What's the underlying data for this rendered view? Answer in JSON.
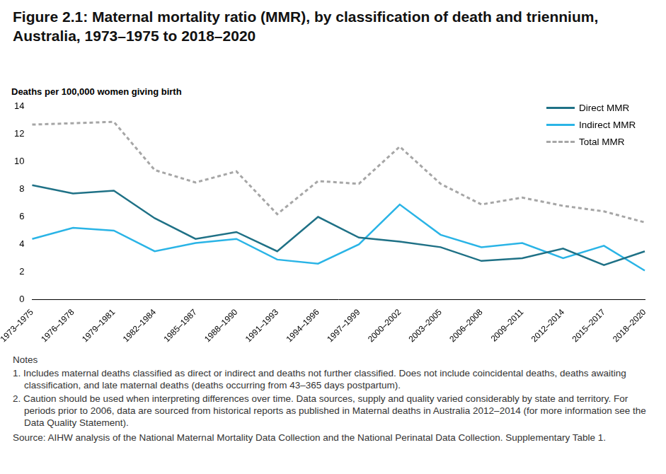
{
  "chart_data": {
    "type": "line",
    "title": "Figure 2.1: Maternal mortality ratio (MMR), by classification of death and triennium, Australia, 1973–1975 to 2018–2020",
    "y_label": "Deaths per 100,000 women giving birth",
    "categories": [
      "1973–1975",
      "1976–1978",
      "1979–1981",
      "1982–1984",
      "1985–1987",
      "1988–1990",
      "1991–1993",
      "1994–1996",
      "1997–1999",
      "2000–2002",
      "2003–2005",
      "2006–2008",
      "2009–2011",
      "2012–2014",
      "2015–2017",
      "2018–2020"
    ],
    "series": [
      {
        "name": "Direct MMR",
        "color": "#1f7186",
        "line_style": "solid",
        "values": [
          8.3,
          7.7,
          7.9,
          5.9,
          4.4,
          4.9,
          3.5,
          6.0,
          4.5,
          4.2,
          3.8,
          2.8,
          3.0,
          3.7,
          2.5,
          3.5
        ]
      },
      {
        "name": "Indirect MMR",
        "color": "#2ab4e6",
        "line_style": "solid",
        "values": [
          4.4,
          5.2,
          5.0,
          3.5,
          4.1,
          4.4,
          2.9,
          2.6,
          4.0,
          6.9,
          4.7,
          3.8,
          4.1,
          3.0,
          3.9,
          2.1
        ]
      },
      {
        "name": "Total MMR",
        "color": "#a6a6a6",
        "line_style": "dashed",
        "values": [
          12.7,
          12.8,
          12.9,
          9.4,
          8.5,
          9.3,
          6.2,
          8.6,
          8.4,
          11.1,
          8.4,
          6.9,
          7.4,
          6.8,
          6.4,
          5.6
        ]
      }
    ],
    "ylim": [
      0,
      14
    ],
    "yticks": [
      0,
      2,
      4,
      6,
      8,
      10,
      12,
      14
    ],
    "grid": false,
    "legend": "upper right",
    "notes_heading": "Notes",
    "notes": [
      "1. Includes maternal deaths classified as direct or indirect and deaths not further classified. Does not include coincidental deaths, deaths awaiting classification, and late maternal deaths (deaths occurring from 43–365 days postpartum).",
      "2. Caution should be used when interpreting differences over time. Data sources, supply and quality varied considerably by state and territory. For periods prior to 2006, data are sourced from historical reports as published in Maternal deaths in Australia 2012–2014 (for more information see the Data Quality Statement)."
    ],
    "source": "Source: AIHW analysis of the National Maternal Mortality Data Collection and the National Perinatal Data Collection. Supplementary Table 1."
  }
}
